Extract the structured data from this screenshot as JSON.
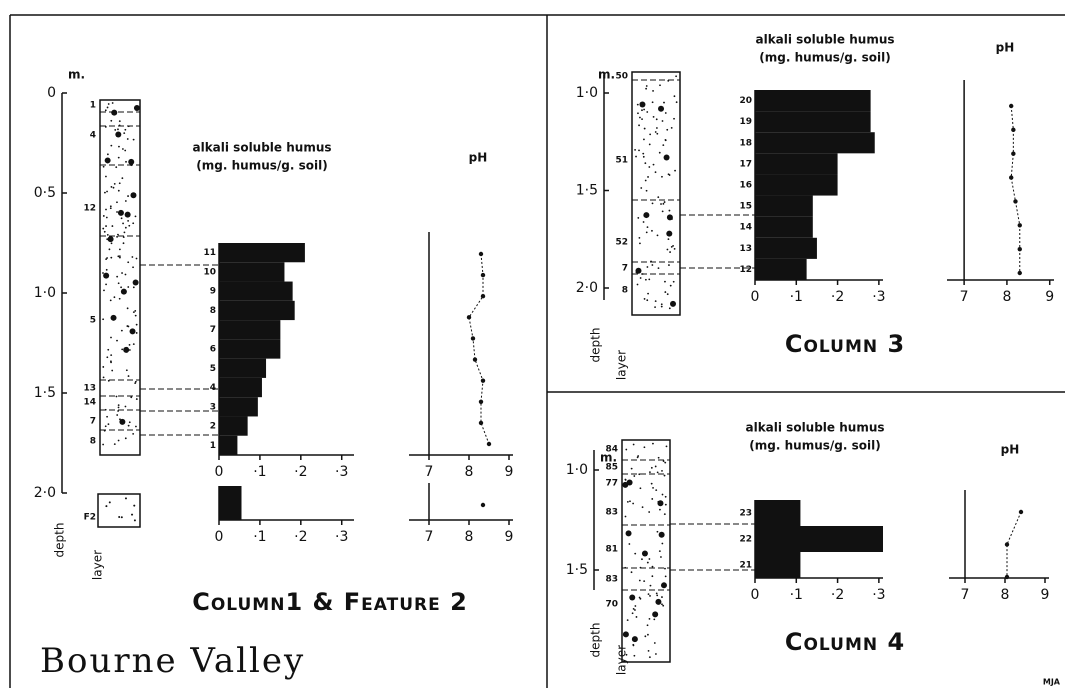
{
  "title": "Bourne Valley",
  "credit": "MJA",
  "panels": [
    {
      "title": "Column1 & Feature 2",
      "depth_unit": "m.",
      "depth_label": "depth",
      "layer_label": "layer",
      "depth_ticks": [
        0,
        {
          "value": 0.5,
          "label": "0·5"
        },
        {
          "value": 1,
          "label": "1·0"
        },
        {
          "value": 1.5,
          "label": "1·5"
        },
        {
          "value": 2,
          "label": "2·0"
        }
      ],
      "layers": [
        "1",
        "4",
        "12",
        "5",
        "13",
        "14",
        "7",
        "8",
        "F2"
      ]
    },
    {
      "title": "Column 3",
      "depth_unit": "m.",
      "depth_label": "depth",
      "layer_label": "layer",
      "depth_ticks": [
        {
          "value": 1,
          "label": "1·0"
        },
        {
          "value": 1.5,
          "label": "1·5"
        },
        {
          "value": 2,
          "label": "2·0"
        }
      ],
      "layers": [
        "50",
        "51",
        "52",
        "7",
        "8"
      ]
    },
    {
      "title": "Column 4",
      "depth_unit": "m.",
      "depth_label": "depth",
      "layer_label": "layer",
      "depth_ticks": [
        {
          "value": 1,
          "label": "1·0"
        },
        {
          "value": 1.5,
          "label": "1·5"
        }
      ],
      "layers": [
        "84",
        "85",
        "77",
        "83",
        "81",
        "83",
        "70"
      ]
    }
  ],
  "chart_data": [
    {
      "type": "bar",
      "title": "alkali soluble humus",
      "subtitle": "(mg. humus/g. soil)",
      "categories": [
        "11",
        "10",
        "9",
        "8",
        "7",
        "6",
        "5",
        "4",
        "3",
        "2",
        "1"
      ],
      "values": [
        0.21,
        0.16,
        0.18,
        0.185,
        0.15,
        0.15,
        0.115,
        0.105,
        0.095,
        0.07,
        0.045
      ],
      "color": "#111111",
      "xlim": [
        0,
        0.33
      ],
      "xticks": [
        0,
        {
          "value": 0.1,
          "label": "·1"
        },
        {
          "value": 0.2,
          "label": "·2"
        },
        {
          "value": 0.3,
          "label": "·3"
        }
      ]
    },
    {
      "type": "bar",
      "values": [
        0.055
      ],
      "color": "#111111",
      "xlim": [
        0,
        0.33
      ],
      "xticks": [
        0,
        {
          "value": 0.1,
          "label": "·1"
        },
        {
          "value": 0.2,
          "label": "·2"
        },
        {
          "value": 0.3,
          "label": "·3"
        }
      ]
    },
    {
      "type": "line",
      "title": "pH",
      "values": [
        8.3,
        8.35,
        8.35,
        8.0,
        8.1,
        8.15,
        8.35,
        8.3,
        8.3,
        8.5
      ],
      "color": "#111111",
      "xlim": [
        6.5,
        9.1
      ],
      "xticks": [
        7,
        8,
        9
      ]
    },
    {
      "type": "line",
      "values": [
        8.35
      ],
      "color": "#111111",
      "xlim": [
        6.5,
        9.1
      ],
      "xticks": [
        7,
        8,
        9
      ]
    },
    {
      "type": "bar",
      "title": "alkali soluble humus",
      "subtitle": "(mg. humus/g. soil)",
      "categories": [
        "20",
        "19",
        "18",
        "17",
        "16",
        "15",
        "14",
        "13",
        "12"
      ],
      "values": [
        0.28,
        0.28,
        0.29,
        0.2,
        0.2,
        0.14,
        0.14,
        0.15,
        0.125
      ],
      "color": "#111111",
      "xlim": [
        0,
        0.31
      ],
      "xticks": [
        0,
        {
          "value": 0.1,
          "label": "·1"
        },
        {
          "value": 0.2,
          "label": "·2"
        },
        {
          "value": 0.3,
          "label": "·3"
        }
      ]
    },
    {
      "type": "line",
      "title": "pH",
      "values": [
        8.1,
        8.15,
        8.15,
        8.1,
        8.2,
        8.3,
        8.3,
        8.3
      ],
      "color": "#111111",
      "xlim": [
        6.6,
        9.1
      ],
      "xticks": [
        7,
        8,
        9
      ]
    },
    {
      "type": "bar",
      "title": "alkali soluble humus",
      "subtitle": "(mg. humus/g. soil)",
      "categories": [
        "23",
        "22",
        "21"
      ],
      "values": [
        0.11,
        0.31,
        0.11
      ],
      "color": "#111111",
      "xlim": [
        0,
        0.31
      ],
      "xticks": [
        0,
        {
          "value": 0.1,
          "label": "·1"
        },
        {
          "value": 0.2,
          "label": "·2"
        },
        {
          "value": 0.3,
          "label": "·3"
        }
      ]
    },
    {
      "type": "line",
      "title": "pH",
      "values": [
        8.4,
        8.05,
        8.05
      ],
      "color": "#111111",
      "xlim": [
        6.6,
        9.1
      ],
      "xticks": [
        7,
        8,
        9
      ]
    }
  ]
}
